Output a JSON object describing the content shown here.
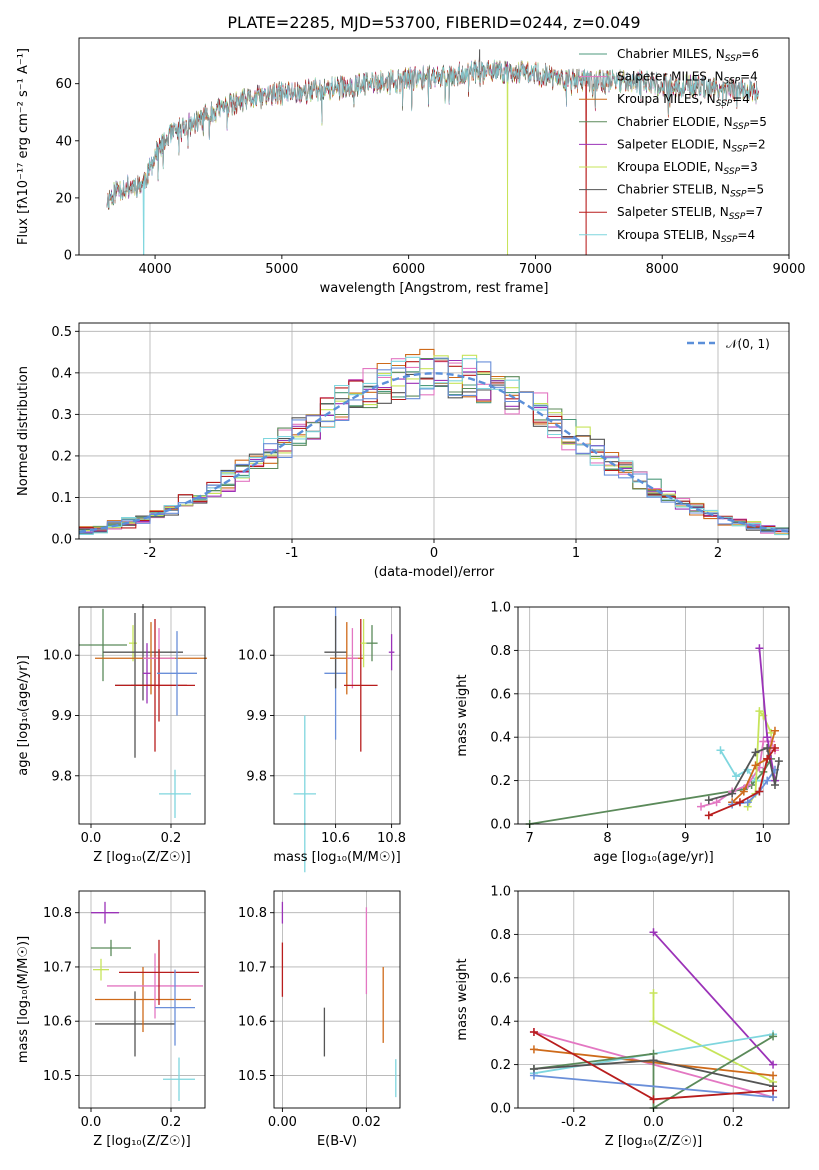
{
  "figure": {
    "title": "PLATE=2285, MJD=53700, FIBERID=0244, z=0.049"
  },
  "chart_data": [
    {
      "id": "spectrum",
      "type": "line",
      "xlabel": "wavelength [Angstrom, rest frame]",
      "ylabel": "Flux [fλ10⁻¹⁷ erg cm⁻² s⁻¹ A⁻¹]",
      "xlim": [
        3400,
        9000
      ],
      "ylim": [
        0,
        76
      ],
      "xticks": [
        4000,
        5000,
        6000,
        7000,
        8000,
        9000
      ],
      "yticks": [
        0,
        20,
        40,
        60
      ],
      "grid": false,
      "legend_position": "top-right",
      "continuum": {
        "x": [
          3620,
          3700,
          3800,
          3900,
          3950,
          4000,
          4100,
          4200,
          4300,
          4400,
          4500,
          4700,
          4900,
          5100,
          5300,
          5500,
          5700,
          5900,
          6100,
          6300,
          6500,
          6700,
          6900,
          7100,
          7300,
          7500,
          7700,
          7900,
          8100,
          8300,
          8500,
          8700,
          8760
        ],
        "y": [
          19,
          23,
          24,
          25,
          29,
          35,
          41,
          44,
          46,
          49,
          51,
          54,
          56,
          57,
          58,
          59,
          60,
          61,
          62,
          63,
          64,
          64,
          64,
          63,
          61,
          61,
          61,
          60,
          59,
          59,
          58,
          58,
          58
        ]
      },
      "series": [
        {
          "name": "Chabrier MILES, N_SSP=6",
          "color": "#4d9a7c",
          "spike": null
        },
        {
          "name": "Salpeter MILES, N_SSP=4",
          "color": "#e377c2",
          "spike": null
        },
        {
          "name": "Kroupa MILES, N_SSP=4",
          "color": "#ce6a1a",
          "spike": null
        },
        {
          "name": "Chabrier ELODIE, N_SSP=5",
          "color": "#5b8a5a",
          "spike": null
        },
        {
          "name": "Salpeter ELODIE, N_SSP=2",
          "color": "#9b32b8",
          "spike": null
        },
        {
          "name": "Kroupa ELODIE, N_SSP=3",
          "color": "#c7e45a",
          "spike": 6780
        },
        {
          "name": "Chabrier STELIB, N_SSP=5",
          "color": "#555555",
          "spike": 6560
        },
        {
          "name": "Salpeter STELIB, N_SSP=7",
          "color": "#b81d1d",
          "spike": 7400
        },
        {
          "name": "Kroupa STELIB, N_SSP=4",
          "color": "#7fd6de",
          "spike": 3910
        }
      ]
    },
    {
      "id": "residuals",
      "type": "histogram",
      "xlabel": "(data-model)/error",
      "ylabel": "Normed distribution",
      "xlim": [
        -2.5,
        2.5
      ],
      "ylim": [
        0,
        0.52
      ],
      "xticks": [
        -2,
        -1,
        0,
        1,
        2
      ],
      "yticks": [
        0.0,
        0.1,
        0.2,
        0.3,
        0.4,
        0.5
      ],
      "grid": true,
      "legend_position": "top-right",
      "reference_curve": {
        "name": "𝒩(0, 1)",
        "color": "#5b8fd9"
      },
      "bin_width": 0.1,
      "hist_colors": [
        "#4d9a7c",
        "#e377c2",
        "#ce6a1a",
        "#5b8a5a",
        "#9b32b8",
        "#c7e45a",
        "#555555",
        "#b81d1d",
        "#7fd6de",
        "#6a8fd9"
      ]
    },
    {
      "id": "age_vs_Z",
      "type": "scatter",
      "xlabel": "Z [log₁₀(Z/Z☉)]",
      "ylabel": "age  [log₁₀(age/yr)]",
      "xlim": [
        -0.03,
        0.285
      ],
      "ylim": [
        9.72,
        10.08
      ],
      "xticks": [
        0.0,
        0.2
      ],
      "yticks": [
        9.8,
        9.9,
        10.0
      ],
      "grid": true,
      "points": [
        {
          "x": 0.03,
          "y": 10.017,
          "xerr": 0.06,
          "yerr": 0.06,
          "color": "#5b8a5a"
        },
        {
          "x": 0.105,
          "y": 10.02,
          "xerr": 0.01,
          "yerr": 0.03,
          "color": "#c7e45a"
        },
        {
          "x": 0.11,
          "y": 9.95,
          "xerr": 0.05,
          "yerr": 0.12,
          "color": "#555555"
        },
        {
          "x": 0.13,
          "y": 10.005,
          "xerr": 0.1,
          "yerr": 0.08,
          "color": "#555555"
        },
        {
          "x": 0.14,
          "y": 9.97,
          "xerr": 0.01,
          "yerr": 0.05,
          "color": "#9b32b8"
        },
        {
          "x": 0.15,
          "y": 9.995,
          "xerr": 0.14,
          "yerr": 0.06,
          "color": "#ce6a1a"
        },
        {
          "x": 0.16,
          "y": 9.95,
          "xerr": 0.1,
          "yerr": 0.11,
          "color": "#b81d1d"
        },
        {
          "x": 0.17,
          "y": 9.995,
          "xerr": 0.04,
          "yerr": 0.05,
          "color": "#e377c2"
        },
        {
          "x": 0.17,
          "y": 9.95,
          "xerr": 0.07,
          "yerr": 0.06,
          "color": "#b81d1d"
        },
        {
          "x": 0.215,
          "y": 9.97,
          "xerr": 0.05,
          "yerr": 0.07,
          "color": "#6a8fd9"
        },
        {
          "x": 0.21,
          "y": 9.77,
          "xerr": 0.04,
          "yerr": 0.04,
          "color": "#7fd6de"
        }
      ]
    },
    {
      "id": "age_vs_mass",
      "type": "scatter",
      "xlabel": "mass [log₁₀(M/M☉)]",
      "ylabel": "",
      "xlim": [
        10.38,
        10.83
      ],
      "ylim": [
        9.72,
        10.08
      ],
      "xticks": [
        10.6,
        10.8
      ],
      "yticks": [
        9.8,
        9.9,
        10.0
      ],
      "grid": true,
      "points": [
        {
          "x": 10.49,
          "y": 9.77,
          "xerr": 0.04,
          "yerr": 0.13,
          "color": "#7fd6de"
        },
        {
          "x": 10.6,
          "y": 9.97,
          "xerr": 0.04,
          "yerr": 0.11,
          "color": "#6a8fd9"
        },
        {
          "x": 10.6,
          "y": 10.005,
          "xerr": 0.04,
          "yerr": 0.06,
          "color": "#555555"
        },
        {
          "x": 10.64,
          "y": 9.995,
          "xerr": 0.06,
          "yerr": 0.06,
          "color": "#ce6a1a"
        },
        {
          "x": 10.66,
          "y": 9.995,
          "xerr": 0.02,
          "yerr": 0.05,
          "color": "#e377c2"
        },
        {
          "x": 10.69,
          "y": 9.95,
          "xerr": 0.06,
          "yerr": 0.11,
          "color": "#b81d1d"
        },
        {
          "x": 10.7,
          "y": 10.02,
          "xerr": 0.01,
          "yerr": 0.04,
          "color": "#c7e45a"
        },
        {
          "x": 10.73,
          "y": 10.02,
          "xerr": 0.02,
          "yerr": 0.03,
          "color": "#5b8a5a"
        },
        {
          "x": 10.8,
          "y": 10.005,
          "xerr": 0.01,
          "yerr": 0.03,
          "color": "#9b32b8"
        }
      ]
    },
    {
      "id": "massweight_vs_age",
      "type": "line",
      "xlabel": "age  [log₁₀(age/yr)]",
      "ylabel": "mass weight",
      "xlim": [
        6.85,
        10.33
      ],
      "ylim": [
        0,
        1
      ],
      "xticks": [
        7,
        8,
        9,
        10
      ],
      "yticks": [
        0.0,
        0.2,
        0.4,
        0.6,
        0.8,
        1.0
      ],
      "grid": true,
      "series": [
        {
          "color": "#5b8a5a",
          "x": [
            7.0,
            9.75,
            9.85,
            10.0,
            10.1
          ],
          "y": [
            0.0,
            0.16,
            0.18,
            0.24,
            0.3
          ]
        },
        {
          "color": "#7fd6de",
          "x": [
            9.45,
            9.65,
            9.8,
            9.9,
            10.0
          ],
          "y": [
            0.34,
            0.22,
            0.25,
            0.2,
            0.2
          ]
        },
        {
          "color": "#e377c2",
          "x": [
            9.2,
            9.4,
            9.6,
            9.8,
            9.95,
            10.0,
            10.1,
            10.15
          ],
          "y": [
            0.08,
            0.1,
            0.15,
            0.18,
            0.26,
            0.38,
            0.38,
            0.34
          ]
        },
        {
          "color": "#c7e45a",
          "x": [
            9.8,
            9.9,
            9.95,
            10.0,
            10.1
          ],
          "y": [
            0.08,
            0.14,
            0.52,
            0.5,
            0.42
          ]
        },
        {
          "color": "#9b32b8",
          "x": [
            9.95,
            10.05,
            10.15
          ],
          "y": [
            0.81,
            0.4,
            0.2
          ]
        },
        {
          "color": "#ce6a1a",
          "x": [
            9.6,
            9.75,
            9.9,
            10.05,
            10.15
          ],
          "y": [
            0.1,
            0.15,
            0.27,
            0.3,
            0.43
          ]
        },
        {
          "color": "#6a8fd9",
          "x": [
            9.6,
            9.8,
            9.95,
            10.05,
            10.15
          ],
          "y": [
            0.09,
            0.1,
            0.15,
            0.2,
            0.25
          ]
        },
        {
          "color": "#555555",
          "x": [
            9.3,
            9.6,
            9.9,
            10.05,
            10.15,
            10.2
          ],
          "y": [
            0.11,
            0.14,
            0.33,
            0.35,
            0.18,
            0.29
          ]
        },
        {
          "color": "#b81d1d",
          "x": [
            9.3,
            9.7,
            9.95,
            10.05,
            10.15
          ],
          "y": [
            0.04,
            0.1,
            0.15,
            0.3,
            0.35
          ]
        }
      ]
    },
    {
      "id": "mass_vs_Z",
      "type": "scatter",
      "xlabel": "Z [log₁₀(Z/Z☉)]",
      "ylabel": "mass [log₁₀(M/M☉)]",
      "xlim": [
        -0.03,
        0.285
      ],
      "ylim": [
        10.44,
        10.84
      ],
      "xticks": [
        0.0,
        0.2
      ],
      "yticks": [
        10.5,
        10.6,
        10.7,
        10.8
      ],
      "grid": true,
      "points": [
        {
          "x": 0.035,
          "y": 10.8,
          "xerr": 0.035,
          "yerr": 0.02,
          "color": "#9b32b8"
        },
        {
          "x": 0.05,
          "y": 10.735,
          "xerr": 0.05,
          "yerr": 0.015,
          "color": "#5b8a5a"
        },
        {
          "x": 0.025,
          "y": 10.695,
          "xerr": 0.02,
          "yerr": 0.02,
          "color": "#c7e45a"
        },
        {
          "x": 0.11,
          "y": 10.595,
          "xerr": 0.1,
          "yerr": 0.06,
          "color": "#555555"
        },
        {
          "x": 0.13,
          "y": 10.64,
          "xerr": 0.12,
          "yerr": 0.06,
          "color": "#ce6a1a"
        },
        {
          "x": 0.16,
          "y": 10.665,
          "xerr": 0.12,
          "yerr": 0.06,
          "color": "#e377c2"
        },
        {
          "x": 0.17,
          "y": 10.69,
          "xerr": 0.1,
          "yerr": 0.06,
          "color": "#b81d1d"
        },
        {
          "x": 0.21,
          "y": 10.625,
          "xerr": 0.05,
          "yerr": 0.07,
          "color": "#6a8fd9"
        },
        {
          "x": 0.22,
          "y": 10.493,
          "xerr": 0.04,
          "yerr": 0.04,
          "color": "#7fd6de"
        }
      ]
    },
    {
      "id": "mass_vs_EBV",
      "type": "scatter",
      "xlabel": "E(B-V)",
      "ylabel": "",
      "xlim": [
        -0.002,
        0.028
      ],
      "ylim": [
        10.44,
        10.84
      ],
      "xticks": [
        0.0,
        0.02
      ],
      "yticks": [
        10.5,
        10.6,
        10.7,
        10.8
      ],
      "grid": true,
      "points": [
        {
          "x": 0.0,
          "y": 10.8,
          "xerr": 0,
          "yerr": 0.02,
          "color": "#9b32b8"
        },
        {
          "x": 0.0,
          "y": 10.695,
          "xerr": 0,
          "yerr": 0.05,
          "color": "#b81d1d"
        },
        {
          "x": 0.01,
          "y": 10.58,
          "xerr": 0,
          "yerr": 0.045,
          "color": "#555555"
        },
        {
          "x": 0.02,
          "y": 10.73,
          "xerr": 0,
          "yerr": 0.08,
          "color": "#e377c2"
        },
        {
          "x": 0.024,
          "y": 10.63,
          "xerr": 0,
          "yerr": 0.07,
          "color": "#ce6a1a"
        },
        {
          "x": 0.027,
          "y": 10.495,
          "xerr": 0,
          "yerr": 0.035,
          "color": "#7fd6de"
        }
      ]
    },
    {
      "id": "massweight_vs_Z",
      "type": "line",
      "xlabel": "Z [log₁₀(Z/Z☉)]",
      "ylabel": "mass weight",
      "xlim": [
        -0.34,
        0.34
      ],
      "ylim": [
        0,
        1
      ],
      "xticks": [
        -0.2,
        0.0,
        0.2
      ],
      "yticks": [
        0.0,
        0.2,
        0.4,
        0.6,
        0.8,
        1.0
      ],
      "grid": true,
      "series": [
        {
          "color": "#9b32b8",
          "x": [
            0.0,
            0.3
          ],
          "y": [
            0.81,
            0.2
          ]
        },
        {
          "color": "#c7e45a",
          "x": [
            0.0,
            0.0,
            0.3
          ],
          "y": [
            0.53,
            0.4,
            0.12
          ]
        },
        {
          "color": "#e377c2",
          "x": [
            -0.3,
            0.3
          ],
          "y": [
            0.35,
            0.05
          ]
        },
        {
          "color": "#ce6a1a",
          "x": [
            -0.3,
            0.3
          ],
          "y": [
            0.27,
            0.15
          ]
        },
        {
          "color": "#7fd6de",
          "x": [
            -0.3,
            0.3
          ],
          "y": [
            0.16,
            0.34
          ]
        },
        {
          "color": "#5b8a5a",
          "x": [
            -0.3,
            0.0,
            0.0,
            0.3
          ],
          "y": [
            0.18,
            0.25,
            0.0,
            0.33
          ]
        },
        {
          "color": "#555555",
          "x": [
            -0.3,
            0.0,
            0.3
          ],
          "y": [
            0.18,
            0.22,
            0.1
          ]
        },
        {
          "color": "#6a8fd9",
          "x": [
            -0.3,
            0.3
          ],
          "y": [
            0.15,
            0.05
          ]
        },
        {
          "color": "#b81d1d",
          "x": [
            -0.3,
            0.0,
            0.3
          ],
          "y": [
            0.35,
            0.04,
            0.08
          ]
        }
      ]
    }
  ]
}
